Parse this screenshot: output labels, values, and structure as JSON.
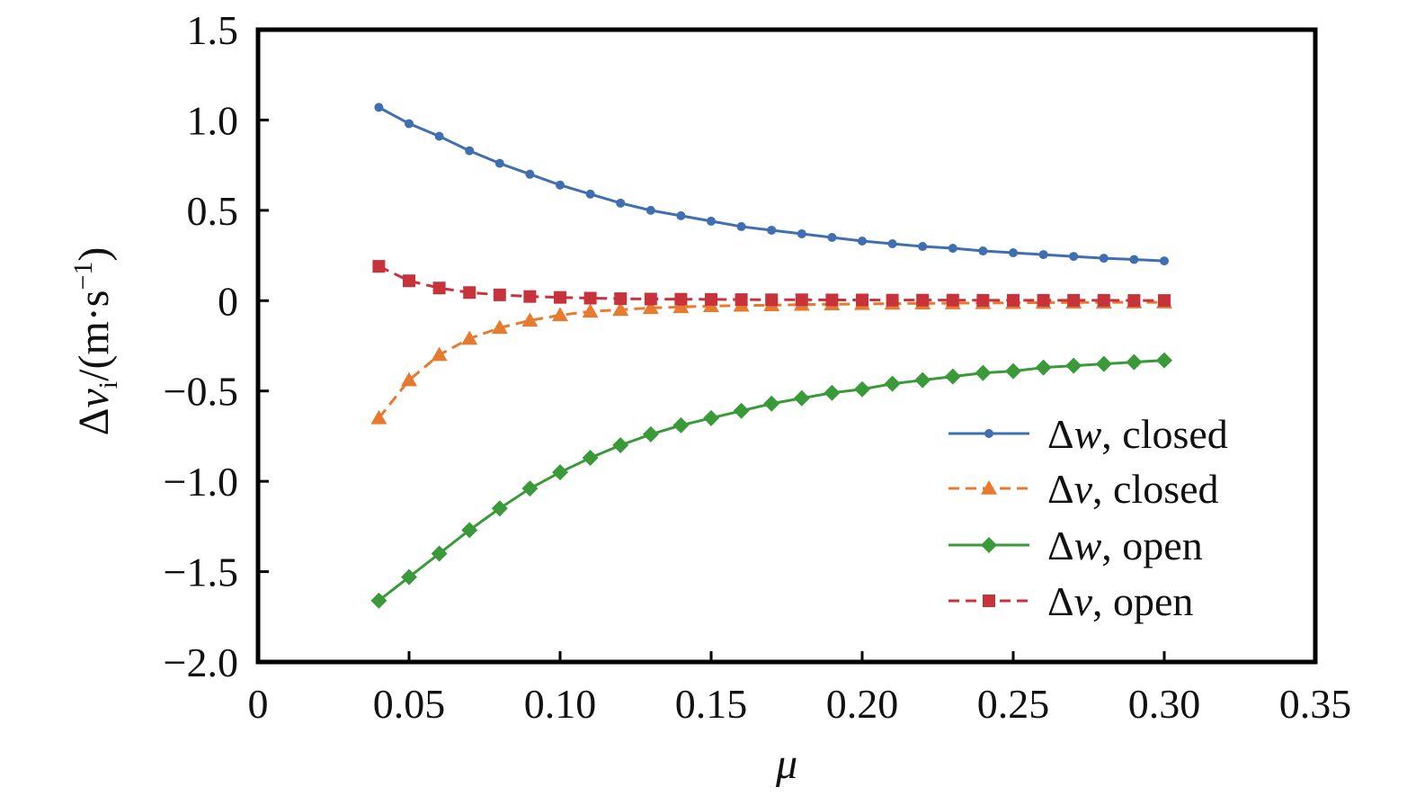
{
  "chart_data": {
    "type": "line",
    "title": "",
    "xlabel": "μ",
    "ylabel_parts": {
      "delta": "Δ",
      "var": "v",
      "sub": "i",
      "unit_open": "/(m·s",
      "unit_exp": "−1",
      "unit_close": ")"
    },
    "xlim": [
      0,
      0.35
    ],
    "ylim": [
      -2.0,
      1.5
    ],
    "x_ticks": [
      0,
      0.05,
      0.1,
      0.15,
      0.2,
      0.25,
      0.3,
      0.35
    ],
    "x_tick_labels": [
      "0",
      "0.05",
      "0.10",
      "0.15",
      "0.20",
      "0.25",
      "0.30",
      "0.35"
    ],
    "y_ticks": [
      1.5,
      1.0,
      0.5,
      0,
      -0.5,
      -1.0,
      -1.5,
      -2.0
    ],
    "y_tick_labels": [
      "1.5",
      "1.0",
      "0.5",
      "0",
      "−0.5",
      "−1.0",
      "−1.5",
      "−2.0"
    ],
    "grid": false,
    "legend_position": "lower-right",
    "x": [
      0.04,
      0.05,
      0.06,
      0.07,
      0.08,
      0.09,
      0.1,
      0.11,
      0.12,
      0.13,
      0.14,
      0.15,
      0.16,
      0.17,
      0.18,
      0.19,
      0.2,
      0.21,
      0.22,
      0.23,
      0.24,
      0.25,
      0.26,
      0.27,
      0.28,
      0.29,
      0.3
    ],
    "series": [
      {
        "name": "Δw, closed",
        "legend_sym": "Δ",
        "legend_var": "w",
        "legend_rest": ", closed",
        "color": "#3f6fb0",
        "marker": "circle",
        "dash": "solid",
        "values": [
          1.07,
          0.98,
          0.91,
          0.83,
          0.76,
          0.7,
          0.64,
          0.59,
          0.54,
          0.5,
          0.47,
          0.44,
          0.41,
          0.39,
          0.37,
          0.35,
          0.33,
          0.315,
          0.3,
          0.29,
          0.275,
          0.265,
          0.255,
          0.245,
          0.235,
          0.228,
          0.22
        ]
      },
      {
        "name": "Δv, closed",
        "legend_sym": "Δ",
        "legend_var": "v",
        "legend_rest": ", closed",
        "color": "#e87a30",
        "marker": "triangle",
        "dash": "dashed",
        "values": [
          -0.65,
          -0.44,
          -0.3,
          -0.21,
          -0.15,
          -0.11,
          -0.08,
          -0.06,
          -0.05,
          -0.04,
          -0.035,
          -0.03,
          -0.027,
          -0.025,
          -0.022,
          -0.02,
          -0.018,
          -0.016,
          -0.015,
          -0.014,
          -0.013,
          -0.012,
          -0.011,
          -0.01,
          -0.01,
          -0.009,
          -0.009
        ]
      },
      {
        "name": "Δw, open",
        "legend_sym": "Δ",
        "legend_var": "w",
        "legend_rest": ", open",
        "color": "#3a9a3a",
        "marker": "diamond",
        "dash": "solid",
        "values": [
          -1.66,
          -1.53,
          -1.4,
          -1.27,
          -1.15,
          -1.04,
          -0.95,
          -0.87,
          -0.8,
          -0.74,
          -0.69,
          -0.65,
          -0.61,
          -0.57,
          -0.54,
          -0.51,
          -0.49,
          -0.46,
          -0.44,
          -0.42,
          -0.4,
          -0.39,
          -0.37,
          -0.36,
          -0.35,
          -0.34,
          -0.33
        ]
      },
      {
        "name": "Δv, open",
        "legend_sym": "Δ",
        "legend_var": "v",
        "legend_rest": ", open",
        "color": "#c8323a",
        "marker": "square",
        "dash": "dashed",
        "values": [
          0.19,
          0.11,
          0.07,
          0.045,
          0.032,
          0.023,
          0.018,
          0.014,
          0.011,
          0.009,
          0.008,
          0.007,
          0.006,
          0.005,
          0.005,
          0.004,
          0.004,
          0.003,
          0.003,
          0.003,
          0.002,
          0.002,
          0.002,
          0.002,
          0.002,
          0.001,
          0.001
        ]
      }
    ]
  }
}
